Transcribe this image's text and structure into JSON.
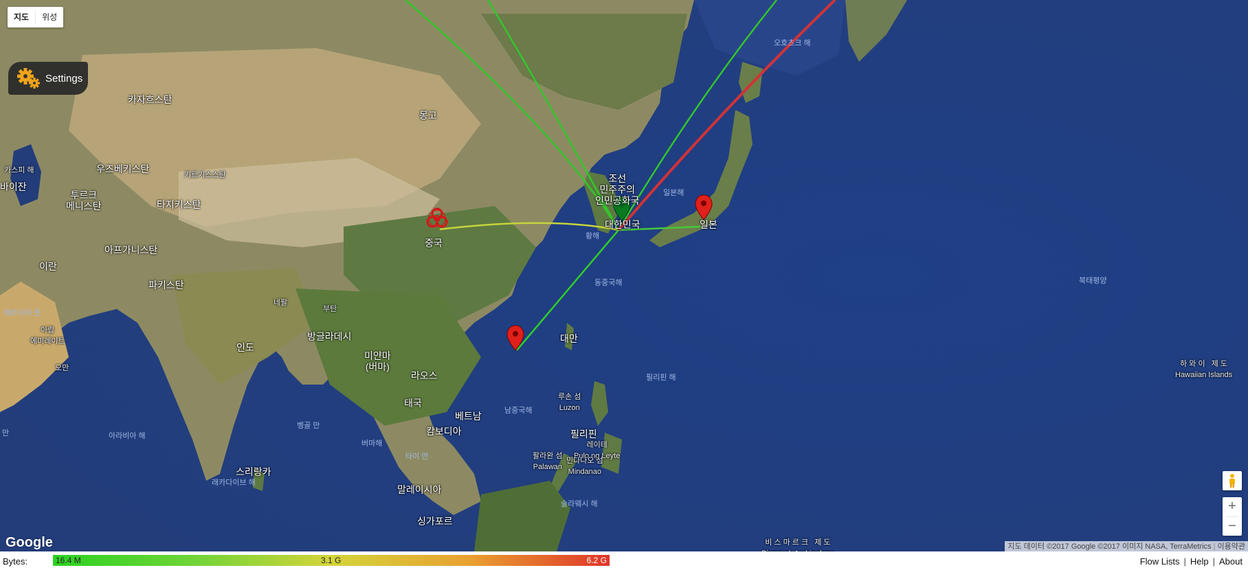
{
  "map_type": {
    "map_label": "지도",
    "satellite_label": "위성",
    "selected": "지도"
  },
  "settings": {
    "label": "Settings",
    "icon": "gear-icon"
  },
  "labels": {
    "kazakhstan": "카자흐스탄",
    "mongolia": "몽고",
    "uzbekistan": "우즈베키스탄",
    "kyrgyzstan": "키르기스스탄",
    "turkmenistan": "투르크\n메니스탄",
    "tajikistan": "타지키스탄",
    "caspian": "카스피 해",
    "azerbaijan_cut": "바이잔",
    "afghanistan": "아프가니스탄",
    "iran": "이란",
    "pakistan": "파키스탄",
    "nepal": "네팔",
    "bhutan": "부탄",
    "india": "인도",
    "bangladesh": "방글라데시",
    "myanmar": "미얀마\n(버마)",
    "laos": "라오스",
    "thailand": "태국",
    "vietnam": "베트남",
    "cambodia": "캄보디아",
    "malaysia": "말레이시아",
    "singapore": "싱가포르",
    "sri_lanka": "스리랑카",
    "uae": "아랍\n에미레이트",
    "oman": "오만",
    "china": "중국",
    "north_korea": "조선\n민주주의\n인민공화국",
    "south_korea": "대한민국",
    "japan": "일본",
    "taiwan": "대만",
    "philippines": "필리핀",
    "luzon": "루손 섬\nLuzon",
    "leyte": "레이테\nPulo ng Leyte",
    "palawan": "팔라완 섬\nPalawan",
    "mindanao": "민다나오 섬\nMindanao",
    "hawaii": "하 와 이   제 도\nHawaiian Islands",
    "bismarck": "비 스 마 르 크   제 도\nBismarck Archipelago",
    "sea_okhotsk": "오호츠크 해",
    "sea_japan": "일본해",
    "yellow_sea": "황해",
    "east_china_sea": "동중국해",
    "philippine_sea": "필리핀 해",
    "south_china_sea": "남중국해",
    "pacific": "북태평양",
    "arabian_sea": "아라비아 해",
    "bay_bengal": "벵골 만",
    "laccadive_sea": "래카다이브 해",
    "andaman_sea": "버마해",
    "gulf_thailand": "타이 만",
    "sulu_sea": "술라웨시 해",
    "persian_gulf": "페르시아 만",
    "edge_man": "만"
  },
  "markers": [
    {
      "name": "green-marker",
      "color": "#0a7a1e",
      "location": "대한민국"
    },
    {
      "name": "red-marker-japan",
      "color": "#e0201a",
      "location": "일본"
    },
    {
      "name": "red-marker-hongkong",
      "color": "#e0201a",
      "location": "Hong Kong"
    },
    {
      "name": "biohazard-marker",
      "color": "#cc1a1a",
      "location": "중국"
    }
  ],
  "flows_colors": {
    "low": "#2bd221",
    "mid": "#c9d43a",
    "high": "#e0352a"
  },
  "attribution": {
    "google": "Google",
    "map_data": "지도 데이터 ©2017 Google ©2017 이미지 NASA, TerraMetrics",
    "terms": "이용약관"
  },
  "zoom": {
    "in": "+",
    "out": "−"
  },
  "footer": {
    "bytes_label": "Bytes:",
    "legend_min": "16.4 M",
    "legend_mid": "3.1 G",
    "legend_max": "6.2 G",
    "links": [
      "Flow Lists",
      "Help",
      "About"
    ]
  }
}
